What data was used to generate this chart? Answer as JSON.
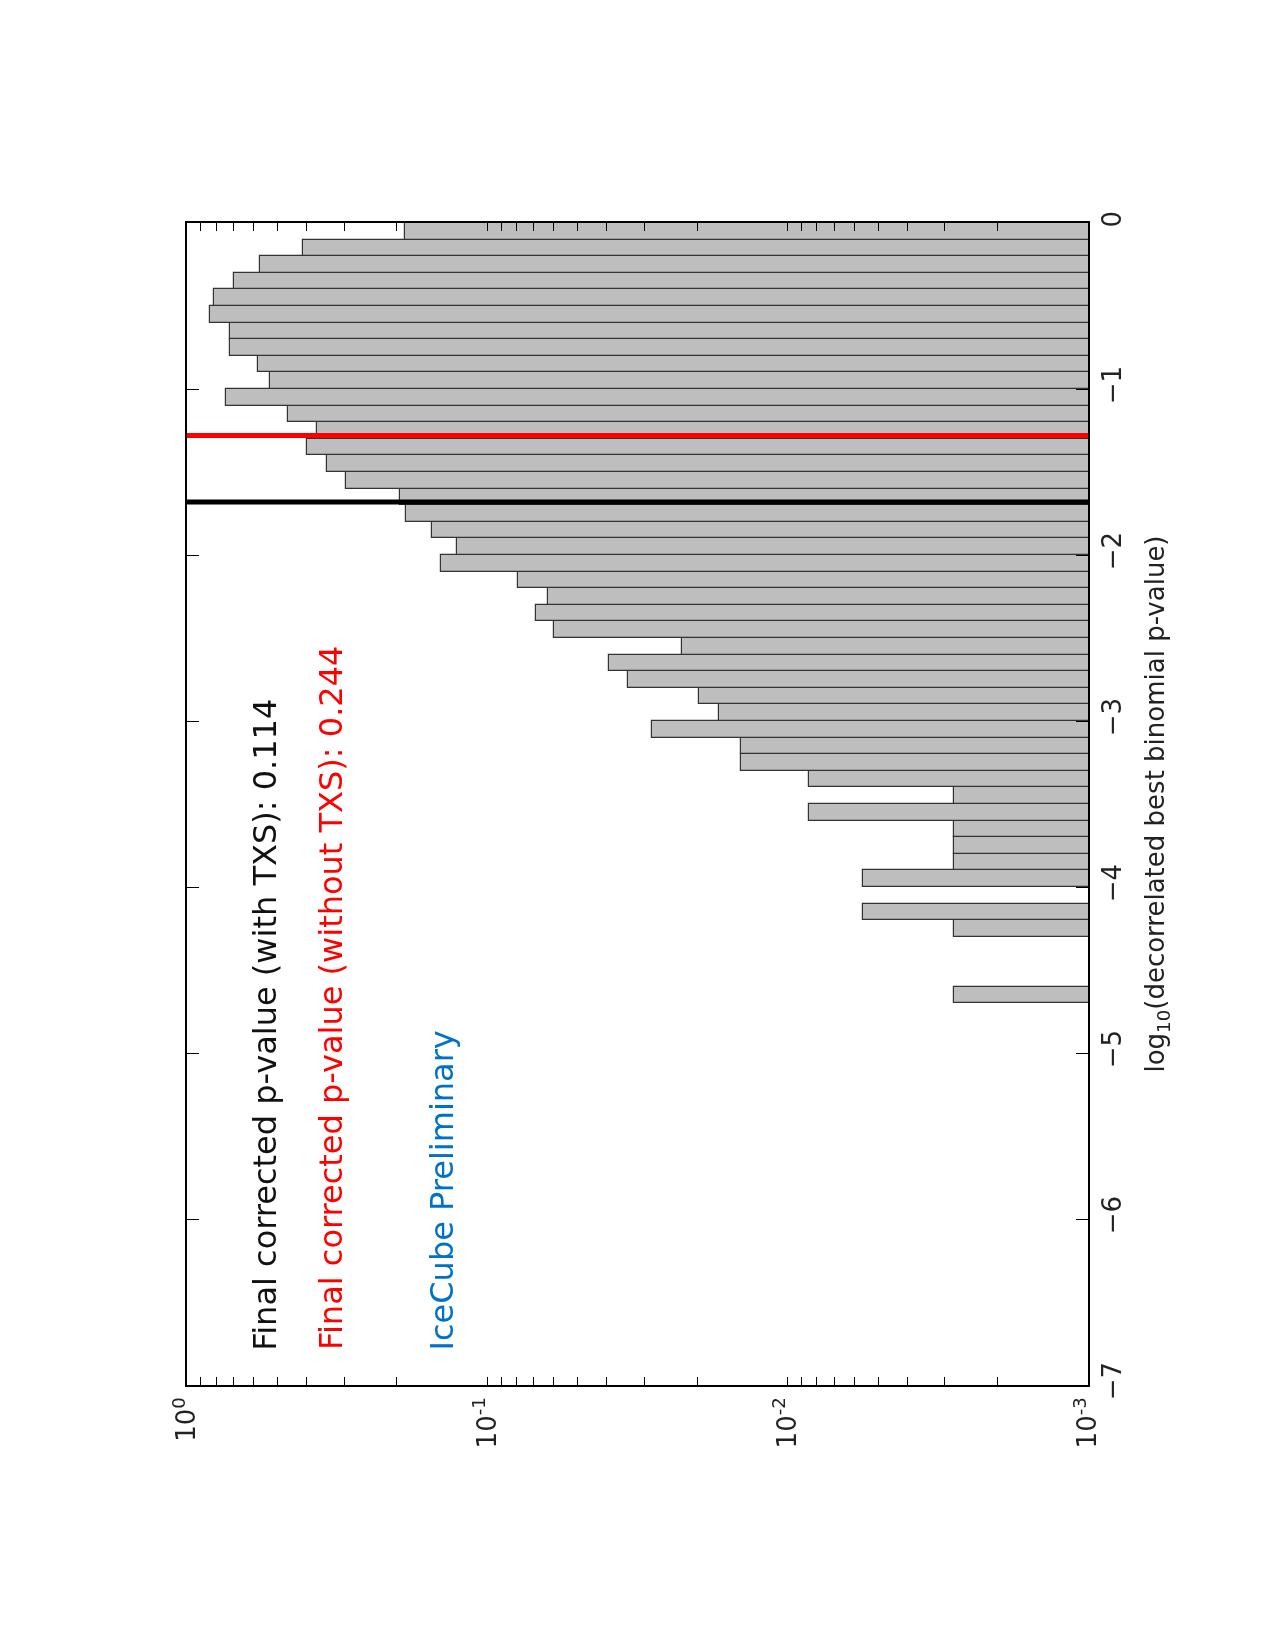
{
  "chart_data": {
    "type": "histogram",
    "orientation": "horizontal",
    "log": "x",
    "ylabel": "log$_{10}$(decorrelated best binomial p-value)",
    "bins": [
      -4.7,
      -4.6,
      -4.5,
      -4.4,
      -4.3,
      -4.2,
      -4.1,
      -4.0,
      -3.9,
      -3.8,
      -3.7,
      -3.6,
      -3.5,
      -3.4,
      -3.3,
      -3.2,
      -3.1,
      -3.0,
      -2.9,
      -2.8,
      -2.7,
      -2.6,
      -2.5,
      -2.4,
      -2.3,
      -2.2,
      -2.1,
      -2.0,
      -1.9,
      -1.8,
      -1.7,
      -1.6,
      -1.5,
      -1.4,
      -1.3,
      -1.2,
      -1.1,
      -1.0,
      -0.9,
      -0.8,
      -0.7,
      -0.6,
      -0.5,
      -0.4,
      -0.3,
      -0.2,
      -0.1,
      0.0
    ],
    "values": [
      0.0028,
      null,
      null,
      null,
      0.0028,
      0.0056,
      null,
      0.0056,
      0.0028,
      0.0028,
      0.0028,
      0.0085,
      0.0028,
      0.0085,
      0.0143,
      0.0143,
      0.0284,
      0.0169,
      0.0198,
      0.0341,
      0.0394,
      0.0225,
      0.06,
      0.069,
      0.063,
      0.079,
      0.143,
      0.126,
      0.153,
      0.186,
      0.195,
      0.296,
      0.342,
      0.4,
      0.37,
      0.46,
      0.74,
      0.53,
      0.58,
      0.72,
      0.72,
      0.84,
      0.81,
      0.7,
      0.57,
      0.41,
      0.188
    ],
    "color": "#bebebe",
    "xlim": [
      1,
      0.001
    ],
    "xticks": [
      {
        "value": 1,
        "label": "10$^{0}$"
      },
      {
        "value": 0.9,
        "label": null
      },
      {
        "value": 0.8,
        "label": null
      },
      {
        "value": 0.7,
        "label": null
      },
      {
        "value": 0.6,
        "label": null
      },
      {
        "value": 0.5,
        "label": null
      },
      {
        "value": 0.4,
        "label": null
      },
      {
        "value": 0.3,
        "label": null
      },
      {
        "value": 0.2,
        "label": null
      },
      {
        "value": 0.1,
        "label": "10$^{-1}$"
      },
      {
        "value": 0.09,
        "label": null
      },
      {
        "value": 0.08,
        "label": null
      },
      {
        "value": 0.07,
        "label": null
      },
      {
        "value": 0.06,
        "label": null
      },
      {
        "value": 0.05,
        "label": null
      },
      {
        "value": 0.04,
        "label": null
      },
      {
        "value": 0.03,
        "label": null
      },
      {
        "value": 0.02,
        "label": null
      },
      {
        "value": 0.01,
        "label": "10$^{-2}$"
      },
      {
        "value": 0.009,
        "label": null
      },
      {
        "value": 0.008,
        "label": null
      },
      {
        "value": 0.007,
        "label": null
      },
      {
        "value": 0.006,
        "label": null
      },
      {
        "value": 0.005,
        "label": null
      },
      {
        "value": 0.004,
        "label": null
      },
      {
        "value": 0.003,
        "label": null
      },
      {
        "value": 0.002,
        "label": null
      },
      {
        "value": 0.001,
        "label": "10$^{-3}$"
      }
    ],
    "ylim": [
      -7,
      0
    ],
    "yticks": [
      {
        "value": -7,
        "label": "−7"
      },
      {
        "value": -6,
        "label": "−6"
      },
      {
        "value": -5,
        "label": "−5"
      },
      {
        "value": -4,
        "label": "−4"
      },
      {
        "value": -3,
        "label": "−3"
      },
      {
        "value": -2,
        "label": "−2"
      },
      {
        "value": -1,
        "label": "−1"
      },
      0
    ],
    "ref_lines": [
      {
        "axis": "y",
        "value": -1.68,
        "color": "#000000"
      },
      {
        "axis": "y",
        "value": -1.28,
        "color": "#ff0000"
      }
    ],
    "annotations": [
      "Final corrected p-value (with TXS): 0.114",
      "Final corrected p-value (without TXS): 0.244",
      "IceCube Preliminary"
    ],
    "marker": "none"
  }
}
